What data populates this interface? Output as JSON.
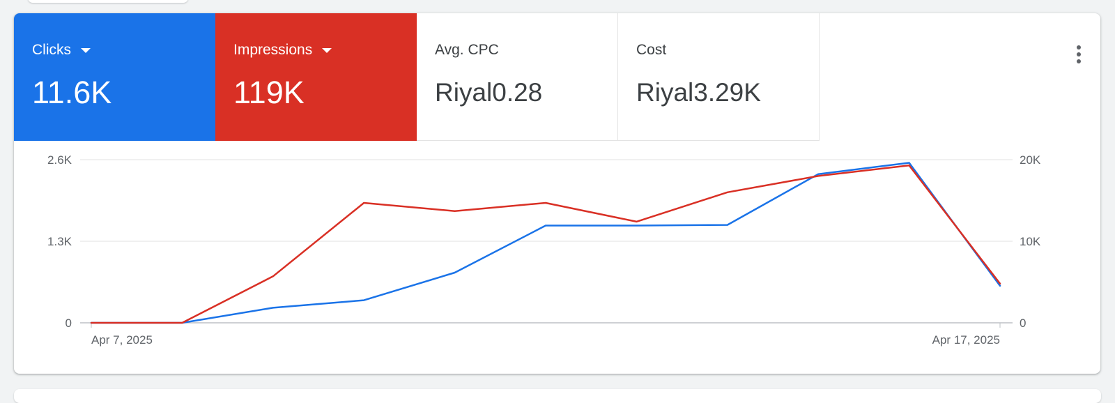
{
  "metrics": [
    {
      "label": "Clicks",
      "value": "11.6K",
      "selected": true,
      "color": "#1a73e8"
    },
    {
      "label": "Impressions",
      "value": "119K",
      "selected": true,
      "color": "#d93025"
    },
    {
      "label": "Avg. CPC",
      "value": "Riyal0.28",
      "selected": false
    },
    {
      "label": "Cost",
      "value": "Riyal3.29K",
      "selected": false
    }
  ],
  "more_menu_icon": "more-vert-icon",
  "chart_data": {
    "type": "line",
    "x": [
      "Apr 7, 2025",
      "Apr 8, 2025",
      "Apr 9, 2025",
      "Apr 10, 2025",
      "Apr 11, 2025",
      "Apr 12, 2025",
      "Apr 13, 2025",
      "Apr 14, 2025",
      "Apr 15, 2025",
      "Apr 16, 2025",
      "Apr 17, 2025"
    ],
    "x_tick_labels": [
      "Apr 7, 2025",
      "Apr 17, 2025"
    ],
    "series": [
      {
        "name": "Clicks",
        "axis": "left",
        "color": "#1a73e8",
        "values": [
          0,
          0,
          240,
          360,
          800,
          1550,
          1550,
          1560,
          2370,
          2550,
          590
        ]
      },
      {
        "name": "Impressions",
        "axis": "right",
        "color": "#d93025",
        "values": [
          0,
          0,
          5700,
          14700,
          13700,
          14700,
          12400,
          16000,
          18000,
          19300,
          4800
        ]
      }
    ],
    "left_axis": {
      "ticks": [
        "0",
        "1.3K",
        "2.6K"
      ],
      "ylim": [
        0,
        2600
      ]
    },
    "right_axis": {
      "ticks": [
        "0",
        "10K",
        "20K"
      ],
      "ylim": [
        0,
        20000
      ]
    },
    "grid": true,
    "legend": "none"
  }
}
